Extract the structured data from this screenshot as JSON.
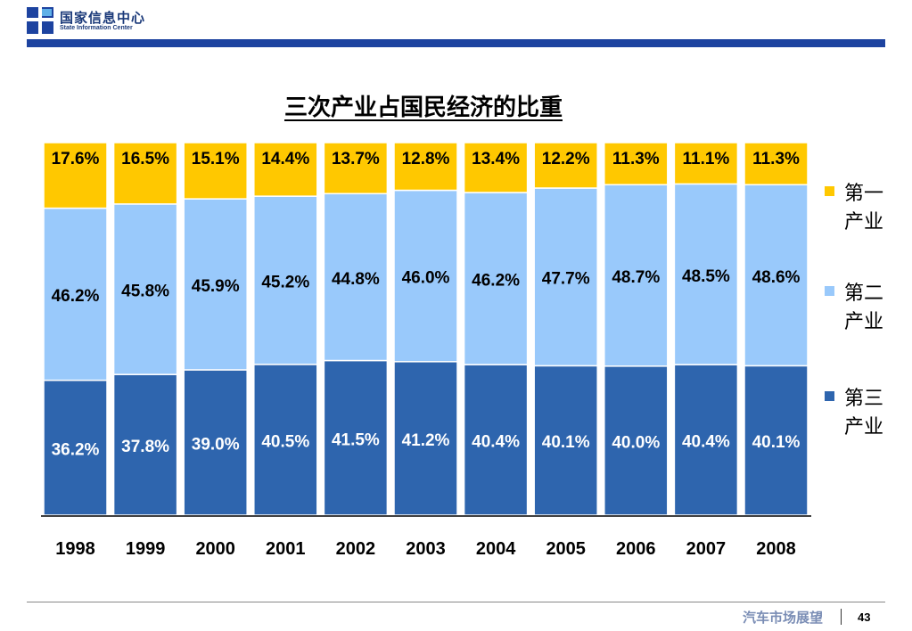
{
  "header": {
    "org_cn": "国家信息中心",
    "org_en": "State Information Center",
    "brand_color": "#1d43a0"
  },
  "footer": {
    "section": "汽车市场展望",
    "page": "43"
  },
  "chart_data": {
    "type": "bar",
    "stacked": true,
    "title": "三次产业占国民经济的比重",
    "categories": [
      "1998",
      "1999",
      "2000",
      "2001",
      "2002",
      "2003",
      "2004",
      "2005",
      "2006",
      "2007",
      "2008"
    ],
    "series": [
      {
        "name": "第三产业",
        "color": "#2e65ae",
        "label_color": "#ffffff",
        "values": [
          36.2,
          37.8,
          39.0,
          40.5,
          41.5,
          41.2,
          40.4,
          40.1,
          40.0,
          40.4,
          40.1
        ],
        "labels": [
          "36.2%",
          "37.8%",
          "39.0%",
          "40.5%",
          "41.5%",
          "41.2%",
          "40.4%",
          "40.1%",
          "40.0%",
          "40.4%",
          "40.1%"
        ]
      },
      {
        "name": "第二产业",
        "color": "#99c9fb",
        "label_color": "#000000",
        "values": [
          46.2,
          45.8,
          45.9,
          45.2,
          44.8,
          46.0,
          46.2,
          47.7,
          48.7,
          48.5,
          48.6
        ],
        "labels": [
          "46.2%",
          "45.8%",
          "45.9%",
          "45.2%",
          "44.8%",
          "46.0%",
          "46.2%",
          "47.7%",
          "48.7%",
          "48.5%",
          "48.6%"
        ]
      },
      {
        "name": "第一产业",
        "color": "#ffc800",
        "label_color": "#000000",
        "values": [
          17.6,
          16.5,
          15.1,
          14.4,
          13.7,
          12.8,
          13.4,
          12.2,
          11.3,
          11.1,
          11.3
        ],
        "labels": [
          "17.6%",
          "16.5%",
          "15.1%",
          "14.4%",
          "13.7%",
          "12.8%",
          "13.4%",
          "12.2%",
          "11.3%",
          "11.1%",
          "11.3%"
        ]
      }
    ],
    "legend": {
      "placement": "right",
      "entries": [
        {
          "line1": "第一",
          "line2": "产业",
          "color": "#ffc800"
        },
        {
          "line1": "第二",
          "line2": "产业",
          "color": "#99c9fb"
        },
        {
          "line1": "第三",
          "line2": "产业",
          "color": "#2e65ae"
        }
      ]
    },
    "ylim": [
      0,
      100
    ],
    "grid": false
  }
}
